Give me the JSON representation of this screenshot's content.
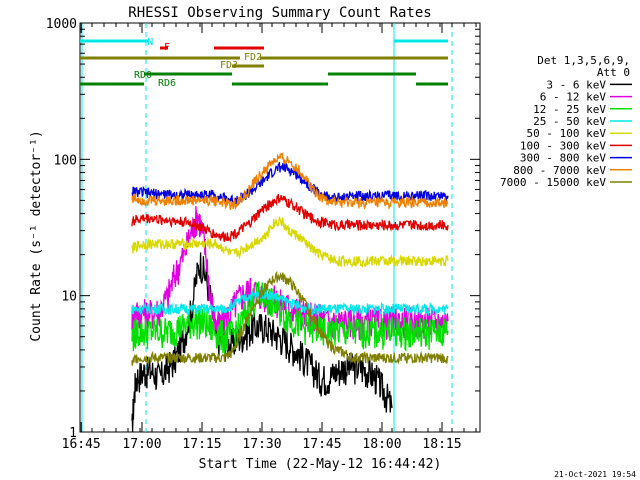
{
  "chart_data": {
    "type": "line",
    "title": "RHESSI Observing Summary Count Rates",
    "xlabel": "Start Time (22-May-12 16:44:42)",
    "ylabel": "Count Rate (s⁻¹ detector⁻¹)",
    "y_scale": "log",
    "ylim": [
      1,
      1000
    ],
    "xlim_min": [
      0,
      100
    ],
    "x_ticks": [
      "16:45",
      "17:00",
      "17:15",
      "17:30",
      "17:45",
      "18:00",
      "18:15"
    ],
    "y_ticks": [
      "1",
      "10",
      "100",
      "1000"
    ],
    "timestamp": "21-Oct-2021 19:54",
    "legend": {
      "header": [
        "Det 1,3,5,6,9,",
        "Att 0"
      ],
      "entries": [
        {
          "label": "3 - 6 keV",
          "color": "#000000"
        },
        {
          "label": "6 - 12 keV",
          "color": "#e000e0"
        },
        {
          "label": "12 - 25 keV",
          "color": "#00e000"
        },
        {
          "label": "25 - 50 keV",
          "color": "#00e8e8"
        },
        {
          "label": "50 - 100 keV",
          "color": "#d8d800"
        },
        {
          "label": "100 - 300 keV",
          "color": "#e00000"
        },
        {
          "label": "300 - 800 keV",
          "color": "#0000e0"
        },
        {
          "label": "800 - 7000 keV",
          "color": "#f08000"
        },
        {
          "label": "7000 - 15000 keV",
          "color": "#808000"
        }
      ]
    },
    "annotations": {
      "N": {
        "label": "N",
        "color": "#00e8e8",
        "intervals": [
          [
            0,
            17
          ],
          [
            78.5,
            92
          ]
        ]
      },
      "F": {
        "label": "F",
        "color": "#e00000",
        "intervals": [
          [
            20,
            22
          ],
          [
            33.5,
            46
          ]
        ]
      },
      "FD2": {
        "label": "FD2",
        "color": "#808000",
        "intervals": [
          [
            0,
            40
          ],
          [
            45,
            92
          ]
        ]
      },
      "FD3": {
        "label": "FD3",
        "color": "#808000",
        "intervals": [
          [
            38,
            46
          ]
        ]
      },
      "RD0": {
        "label": "RD0",
        "color": "#008000",
        "intervals": [
          [
            16,
            38
          ],
          [
            62,
            84
          ]
        ]
      },
      "RD6": {
        "label": "RD6",
        "color": "#008000",
        "intervals": [
          [
            0,
            16
          ],
          [
            38,
            62
          ],
          [
            84,
            92
          ]
        ]
      }
    },
    "vlines": [
      {
        "x": 16.5,
        "style": "dashed",
        "color": "#00e8e8"
      },
      {
        "x": 78.5,
        "style": "solid",
        "color": "#00e8e8"
      },
      {
        "x": 93,
        "style": "dashed",
        "color": "#00e8e8"
      },
      {
        "x": 0.5,
        "style": "solid",
        "color": "#00e8e8"
      }
    ],
    "series": [
      {
        "name": "3 - 6 keV",
        "color": "#000000",
        "x": [
          13,
          14,
          16,
          18,
          20,
          22,
          24,
          26,
          28,
          30,
          32,
          34,
          36,
          38,
          40,
          42,
          44,
          46,
          48,
          50,
          52,
          54,
          56,
          58,
          60,
          62,
          64,
          66,
          68,
          70,
          72,
          74,
          76,
          78
        ],
        "y": [
          1,
          2.5,
          2.8,
          2.8,
          2.5,
          3,
          3.5,
          5,
          8,
          18,
          12,
          5,
          4.5,
          4.5,
          5,
          5.5,
          6,
          6,
          5.5,
          5,
          4.5,
          4,
          3.5,
          3,
          2.5,
          2.5,
          2.8,
          3,
          3,
          3,
          2.8,
          2.5,
          2,
          1.5
        ]
      },
      {
        "name": "6 - 12 keV",
        "color": "#e000e0",
        "x": [
          13,
          14,
          16,
          18,
          20,
          22,
          24,
          26,
          28,
          29.5,
          31,
          32.5,
          34,
          36,
          38,
          40,
          42,
          44,
          46,
          48,
          50,
          52,
          54,
          56,
          58,
          60,
          62,
          64,
          66,
          68,
          70,
          72,
          74,
          76,
          78,
          80,
          82,
          84,
          86,
          88,
          90,
          92
        ],
        "y": [
          7,
          7.5,
          7.5,
          7.5,
          8,
          10,
          15,
          20,
          30,
          40,
          25,
          10,
          6,
          6.5,
          8,
          10,
          11,
          11,
          10,
          9.5,
          9,
          8.5,
          8,
          7.5,
          7,
          7,
          6.5,
          6.5,
          6.5,
          6.5,
          6.5,
          6.5,
          6.5,
          6.5,
          6.5,
          6.5,
          6.5,
          6.5,
          6.5,
          6.5,
          6.5,
          6.5
        ]
      },
      {
        "name": "12 - 25 keV",
        "color": "#00e000",
        "x": [
          13,
          14,
          16,
          18,
          20,
          22,
          24,
          26,
          28,
          30,
          32,
          34,
          36,
          38,
          40,
          42,
          44,
          46,
          48,
          50,
          52,
          54,
          56,
          58,
          60,
          62,
          64,
          66,
          68,
          70,
          72,
          74,
          76,
          78,
          80,
          82,
          84,
          86,
          88,
          90,
          92
        ],
        "y": [
          5,
          5.5,
          5.5,
          5.5,
          5.5,
          5.5,
          5.8,
          6,
          6.5,
          6.5,
          6,
          5.5,
          5,
          5.2,
          6,
          8,
          10,
          10,
          9,
          8,
          7,
          6.5,
          6,
          5.8,
          5.5,
          5.5,
          5.5,
          5.5,
          5.5,
          5.5,
          5.5,
          5.5,
          5.5,
          5.5,
          5.5,
          5.5,
          5.5,
          5.5,
          5.5,
          5.5,
          5.5
        ]
      },
      {
        "name": "25 - 50 keV",
        "color": "#00e8e8",
        "x": [
          13,
          14,
          16,
          18,
          20,
          22,
          24,
          26,
          28,
          30,
          32,
          34,
          36,
          38,
          40,
          42,
          44,
          46,
          48,
          50,
          52,
          54,
          56,
          58,
          60,
          62,
          64,
          66,
          68,
          70,
          72,
          74,
          76,
          78,
          80,
          82,
          84,
          86,
          88,
          90,
          92
        ],
        "y": [
          8,
          8,
          8,
          8,
          8,
          8,
          8,
          8,
          8,
          8,
          8,
          8,
          8,
          8.5,
          9,
          10,
          10,
          10.5,
          10,
          9.5,
          9,
          8.5,
          8.2,
          8,
          8,
          8,
          8,
          8,
          8,
          8,
          8,
          8,
          8,
          8,
          8,
          8,
          8,
          8,
          8,
          8,
          8
        ]
      },
      {
        "name": "50 - 100 keV",
        "color": "#d8d800",
        "x": [
          13,
          14,
          16,
          18,
          20,
          22,
          24,
          26,
          28,
          30,
          32,
          34,
          36,
          38,
          40,
          42,
          44,
          46,
          48,
          50,
          52,
          54,
          56,
          58,
          60,
          62,
          64,
          66,
          68,
          70,
          72,
          74,
          76,
          78,
          80,
          82,
          84,
          86,
          88,
          90,
          92
        ],
        "y": [
          22,
          23,
          24,
          24,
          24,
          24,
          24,
          24,
          24,
          24,
          24,
          24,
          22,
          20,
          21,
          23,
          25,
          27,
          33,
          36,
          30,
          28,
          25,
          22,
          20,
          19,
          18,
          18,
          18,
          18,
          18,
          18,
          18,
          18,
          18,
          18,
          18,
          18,
          18,
          18,
          18
        ]
      },
      {
        "name": "100 - 300 keV",
        "color": "#e00000",
        "x": [
          13,
          14,
          16,
          18,
          20,
          22,
          24,
          26,
          28,
          30,
          32,
          34,
          36,
          38,
          40,
          42,
          44,
          46,
          48,
          50,
          52,
          54,
          56,
          58,
          60,
          62,
          64,
          66,
          68,
          70,
          72,
          74,
          76,
          78,
          80,
          82,
          84,
          86,
          88,
          90,
          92
        ],
        "y": [
          35,
          36,
          37,
          37,
          36,
          36,
          35,
          35,
          34,
          32,
          30,
          28,
          27,
          28,
          30,
          33,
          38,
          44,
          48,
          52,
          48,
          45,
          40,
          37,
          35,
          34,
          33,
          33,
          33,
          33,
          33,
          33,
          33,
          33,
          33,
          33,
          33,
          33,
          33,
          33,
          33
        ]
      },
      {
        "name": "300 - 800 keV",
        "color": "#0000e0",
        "x": [
          13,
          14,
          16,
          18,
          20,
          22,
          24,
          26,
          28,
          30,
          32,
          34,
          36,
          38,
          40,
          42,
          44,
          46,
          48,
          50,
          52,
          54,
          56,
          58,
          60,
          62,
          64,
          66,
          68,
          70,
          72,
          74,
          76,
          78,
          80,
          82,
          84,
          86,
          88,
          90,
          92
        ],
        "y": [
          58,
          58,
          57,
          56,
          56,
          55,
          55,
          55,
          55,
          55,
          55,
          55,
          52,
          50,
          52,
          56,
          62,
          70,
          80,
          88,
          85,
          78,
          70,
          62,
          56,
          53,
          52,
          53,
          54,
          54,
          54,
          54,
          54,
          54,
          54,
          54,
          54,
          54,
          54,
          54,
          54
        ]
      },
      {
        "name": "800 - 7000 keV",
        "color": "#f08000",
        "x": [
          13,
          14,
          16,
          18,
          20,
          22,
          24,
          26,
          28,
          30,
          32,
          34,
          36,
          38,
          40,
          42,
          44,
          46,
          48,
          50,
          52,
          54,
          56,
          58,
          60,
          62,
          64,
          66,
          68,
          70,
          72,
          74,
          76,
          78,
          80,
          82,
          84,
          86,
          88,
          90,
          92
        ],
        "y": [
          52,
          52,
          50,
          50,
          50,
          50,
          50,
          50,
          50,
          50,
          50,
          50,
          48,
          46,
          50,
          58,
          70,
          82,
          95,
          102,
          98,
          88,
          75,
          62,
          54,
          50,
          48,
          48,
          48,
          48,
          48,
          48,
          48,
          48,
          48,
          48,
          48,
          48,
          48,
          48,
          48
        ]
      },
      {
        "name": "7000 - 15000 keV",
        "color": "#808000",
        "x": [
          13,
          14,
          16,
          18,
          20,
          22,
          24,
          26,
          28,
          30,
          32,
          34,
          36,
          38,
          40,
          42,
          44,
          46,
          48,
          50,
          52,
          54,
          56,
          58,
          60,
          62,
          64,
          66,
          68,
          70,
          72,
          74,
          76,
          78,
          80,
          82,
          84,
          86,
          88,
          90,
          92
        ],
        "y": [
          3.2,
          3.5,
          3.5,
          3.5,
          3.5,
          3.5,
          3.5,
          3.5,
          3.5,
          3.5,
          3.5,
          3.5,
          3.5,
          3.8,
          5,
          7,
          9,
          11,
          13,
          14,
          13,
          11,
          9,
          7,
          5.5,
          4.5,
          4,
          3.8,
          3.5,
          3.5,
          3.5,
          3.5,
          3.5,
          3.5,
          3.5,
          3.5,
          3.5,
          3.5,
          3.5,
          3.5,
          3.5
        ]
      }
    ]
  }
}
